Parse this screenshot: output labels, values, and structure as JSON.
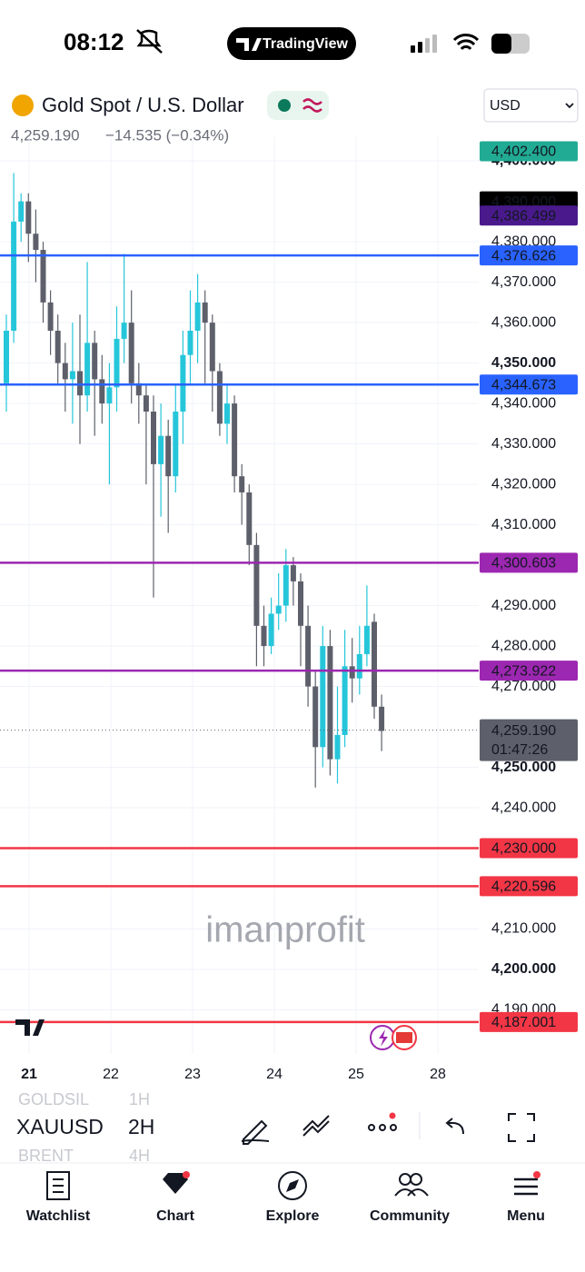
{
  "status_bar": {
    "time": "08:12",
    "app": "TradingView"
  },
  "header": {
    "symbol": "Gold Spot / U.S. Dollar",
    "price": "4,259.190",
    "change": "−14.535 (−0.34%)",
    "currency": "USD"
  },
  "chart_data": {
    "type": "candlestick",
    "x_labels": [
      "21",
      "22",
      "23",
      "24",
      "25",
      "28"
    ],
    "open": [
      4345,
      4358,
      4385,
      4390,
      4382,
      4378,
      4365,
      4358,
      4350,
      4346,
      4348,
      4342,
      4355,
      4346,
      4340,
      4344,
      4356,
      4360,
      4345,
      4342,
      4338,
      4325,
      4332,
      4322,
      4338,
      4352,
      4358,
      4365,
      4360,
      4348,
      4335,
      4340,
      4322,
      4318,
      4305,
      4285,
      4280,
      4288,
      4290,
      4300,
      4296,
      4285,
      4270,
      4255,
      4280,
      4252,
      4258,
      4275,
      4272,
      4278,
      4286,
      4265
    ],
    "high": [
      4362,
      4397,
      4392,
      4392,
      4388,
      4380,
      4368,
      4362,
      4355,
      4360,
      4362,
      4375,
      4358,
      4352,
      4350,
      4364,
      4377,
      4368,
      4350,
      4345,
      4342,
      4340,
      4336,
      4345,
      4358,
      4368,
      4372,
      4368,
      4362,
      4350,
      4345,
      4342,
      4325,
      4320,
      4308,
      4290,
      4292,
      4298,
      4304,
      4302,
      4298,
      4290,
      4274,
      4285,
      4284,
      4270,
      4284,
      4282,
      4285,
      4295,
      4288,
      4268
    ],
    "low": [
      4338,
      4355,
      4380,
      4375,
      4370,
      4360,
      4352,
      4345,
      4338,
      4335,
      4330,
      4338,
      4332,
      4335,
      4320,
      4338,
      4350,
      4340,
      4335,
      4320,
      4292,
      4312,
      4308,
      4318,
      4330,
      4345,
      4350,
      4345,
      4338,
      4332,
      4330,
      4318,
      4310,
      4300,
      4275,
      4275,
      4278,
      4284,
      4286,
      4290,
      4275,
      4265,
      4245,
      4250,
      4248,
      4246,
      4255,
      4266,
      4268,
      4275,
      4262,
      4254
    ],
    "close": [
      4358,
      4385,
      4390,
      4382,
      4378,
      4365,
      4358,
      4350,
      4346,
      4348,
      4342,
      4355,
      4346,
      4340,
      4344,
      4356,
      4360,
      4345,
      4342,
      4338,
      4325,
      4332,
      4322,
      4338,
      4352,
      4358,
      4365,
      4360,
      4348,
      4335,
      4340,
      4322,
      4318,
      4305,
      4285,
      4280,
      4288,
      4290,
      4300,
      4296,
      4285,
      4270,
      4255,
      4280,
      4252,
      4258,
      4275,
      4272,
      4278,
      4285,
      4265,
      4259
    ],
    "up_color": "#26c6da",
    "down_color": "#5d606b",
    "ylim": [
      4179.1,
      4406.1
    ],
    "yticks": [
      {
        "value": 4400,
        "label": "4,400.000"
      },
      {
        "value": 4380,
        "label": "4,380.000"
      },
      {
        "value": 4370,
        "label": "4,370.000"
      },
      {
        "value": 4360,
        "label": "4,360.000"
      },
      {
        "value": 4350,
        "label": "4,350.000"
      },
      {
        "value": 4340,
        "label": "4,340.000"
      },
      {
        "value": 4330,
        "label": "4,330.000"
      },
      {
        "value": 4320,
        "label": "4,320.000"
      },
      {
        "value": 4310,
        "label": "4,310.000"
      },
      {
        "value": 4290,
        "label": "4,290.000"
      },
      {
        "value": 4280,
        "label": "4,280.000"
      },
      {
        "value": 4270,
        "label": "4,270.000"
      },
      {
        "value": 4250,
        "label": "4,250.000"
      },
      {
        "value": 4240,
        "label": "4,240.000"
      },
      {
        "value": 4210,
        "label": "4,210.000"
      },
      {
        "value": 4200,
        "label": "4,200.000"
      },
      {
        "value": 4190,
        "label": "4,190.000"
      }
    ],
    "grid": true,
    "levels": [
      {
        "value": 4402.4,
        "label": "4,402.400",
        "color": "#22ab94",
        "line": false
      },
      {
        "value": 4390,
        "label": "4,390.000",
        "color": "#000000",
        "line": false
      },
      {
        "value": 4386.499,
        "label": "4,386.499",
        "color": "#4a1a8c",
        "line": false
      },
      {
        "value": 4376.626,
        "label": "4,376.626",
        "color": "#2962ff",
        "line": true
      },
      {
        "value": 4344.673,
        "label": "4,344.673",
        "color": "#2962ff",
        "line": true
      },
      {
        "value": 4300.603,
        "label": "4,300.603",
        "color": "#9c27b0",
        "line": true
      },
      {
        "value": 4273.922,
        "label": "4,273.922",
        "color": "#9c27b0",
        "line": true
      },
      {
        "value": 4230,
        "label": "4,230.000",
        "color": "#f23645",
        "line": true
      },
      {
        "value": 4220.596,
        "label": "4,220.596",
        "color": "#f23645",
        "line": true
      },
      {
        "value": 4187.001,
        "label": "4,187.001",
        "color": "#f23645",
        "line": true
      }
    ],
    "last_price": {
      "value": 4259.19,
      "label": "4,259.190",
      "countdown": "01:47:26"
    },
    "watermark": "imanprofit"
  },
  "toolbar": {
    "symbol": "XAUUSD",
    "interval": "2H",
    "prev_symbol": "GOLDSIL",
    "prev_interval": "1H",
    "next_symbol": "BRENT",
    "next_interval": "4H"
  },
  "nav": [
    "Watchlist",
    "Chart",
    "Explore",
    "Community",
    "Menu"
  ]
}
